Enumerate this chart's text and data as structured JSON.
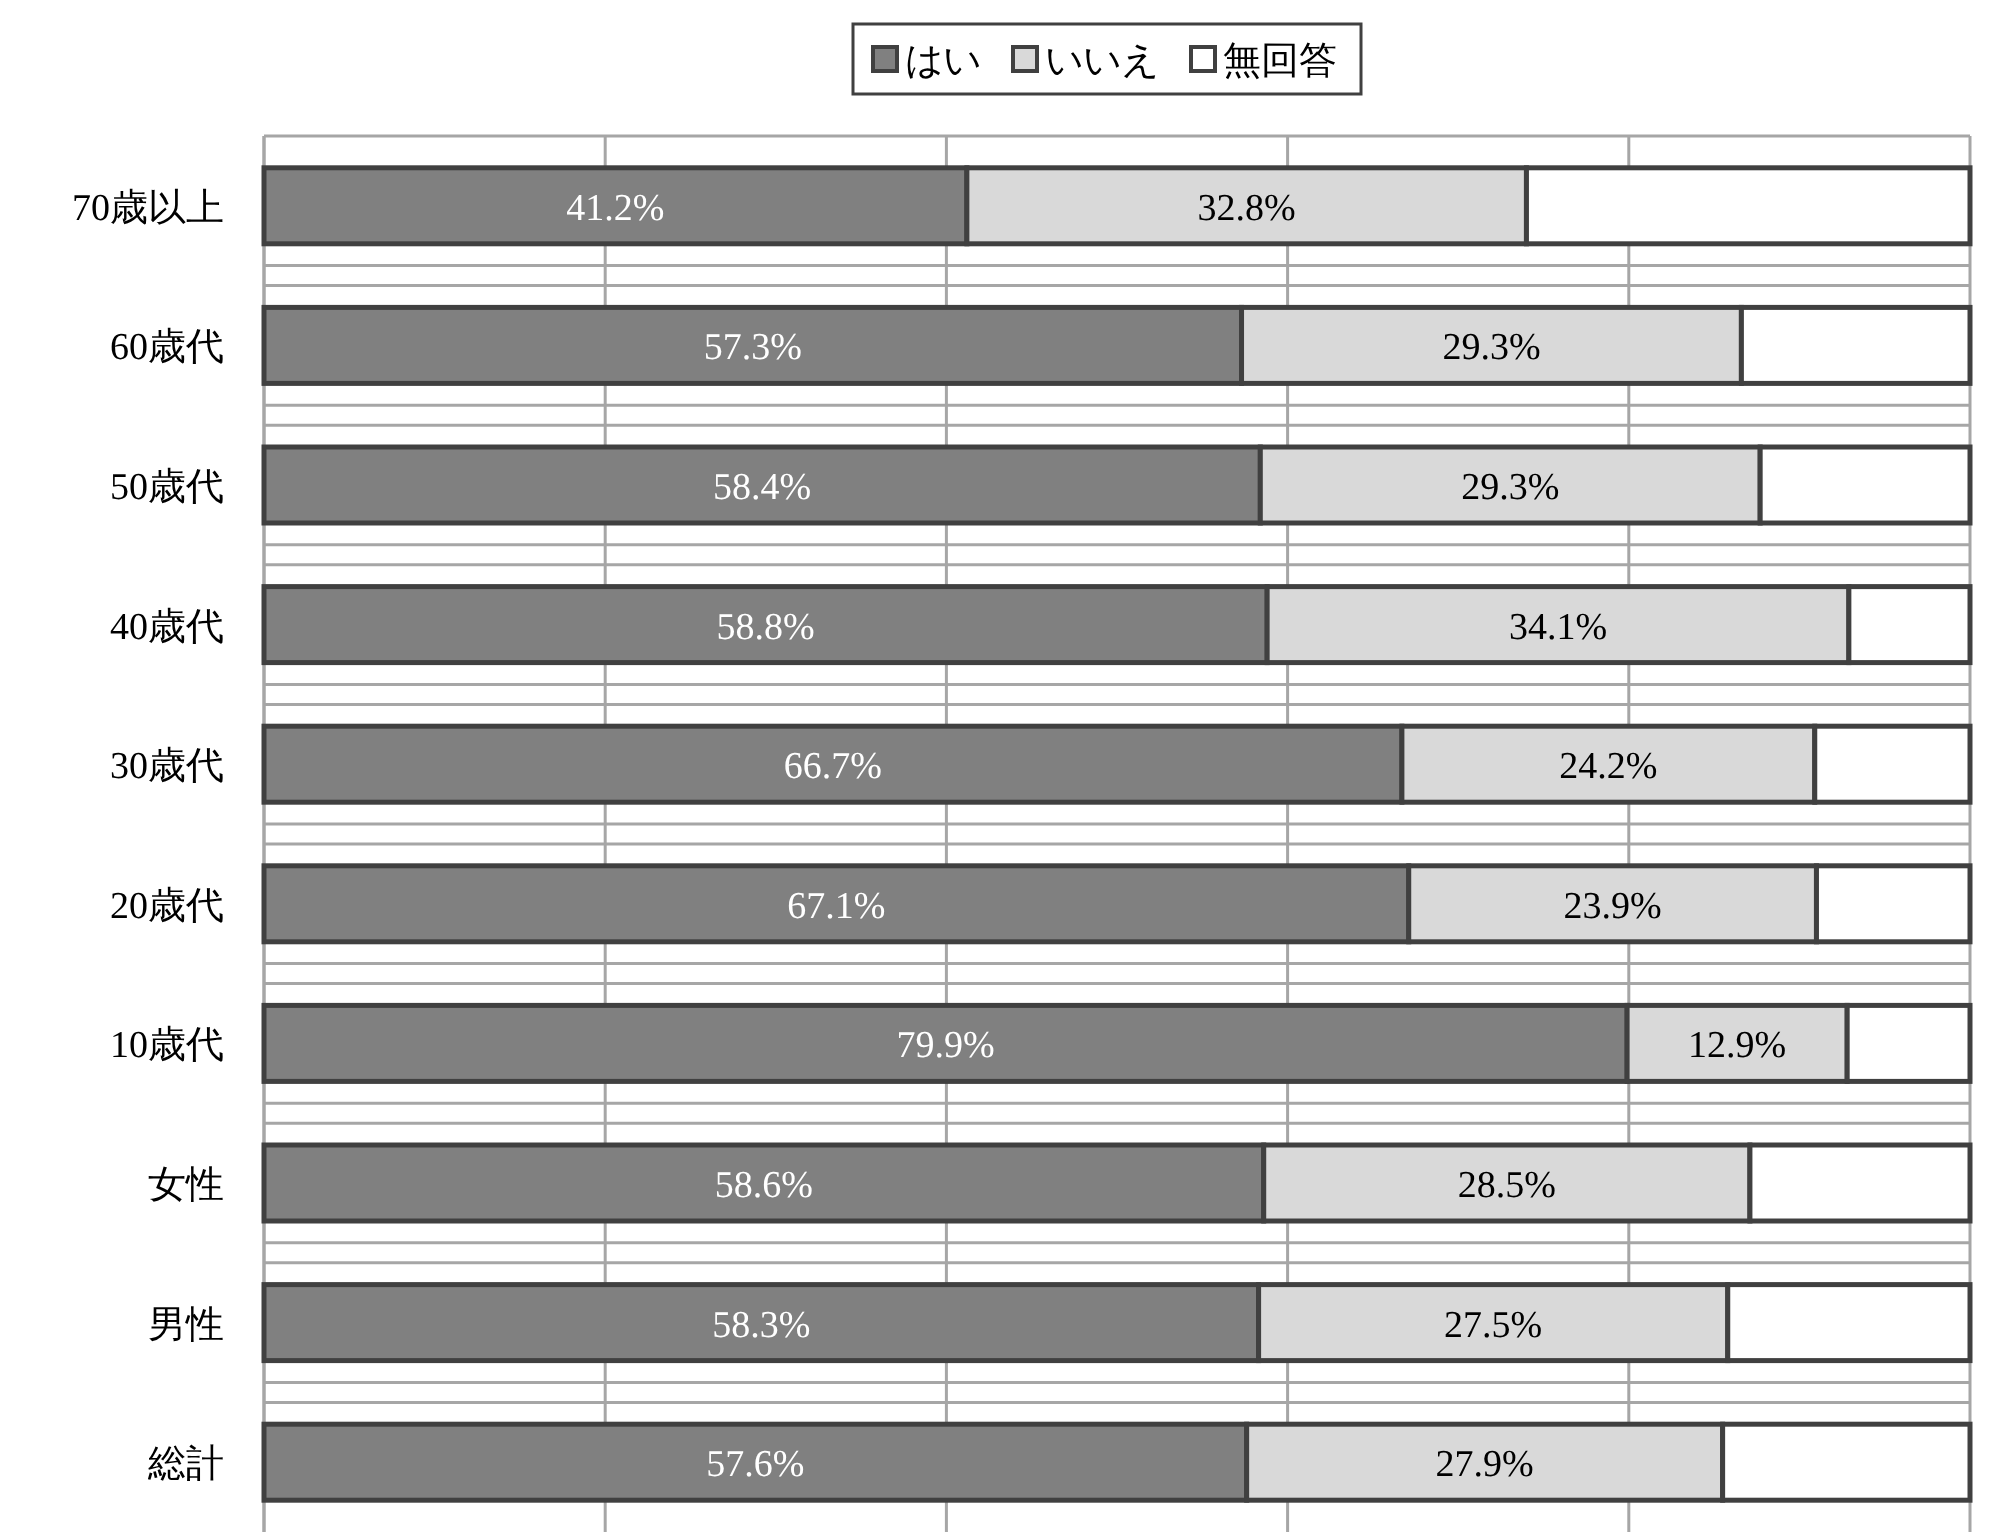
{
  "chart_data": {
    "type": "bar",
    "orientation": "horizontal",
    "stacked": true,
    "categories": [
      "70歳以上",
      "60歳代",
      "50歳代",
      "40歳代",
      "30歳代",
      "20歳代",
      "10歳代",
      "女性",
      "男性",
      "総計"
    ],
    "series": [
      {
        "name": "はい",
        "color": "#808080",
        "values": [
          41.2,
          57.3,
          58.4,
          58.8,
          66.7,
          67.1,
          79.9,
          58.6,
          58.3,
          57.6
        ],
        "value_labels": [
          "41.2%",
          "57.3%",
          "58.4%",
          "58.8%",
          "66.7%",
          "67.1%",
          "79.9%",
          "58.6%",
          "58.3%",
          "57.6%"
        ]
      },
      {
        "name": "いいえ",
        "color": "#d9d9d9",
        "values": [
          32.8,
          29.3,
          29.3,
          34.1,
          24.2,
          23.9,
          12.9,
          28.5,
          27.5,
          27.9
        ],
        "value_labels": [
          "32.8%",
          "29.3%",
          "29.3%",
          "34.1%",
          "24.2%",
          "23.9%",
          "12.9%",
          "28.5%",
          "27.5%",
          "27.9%"
        ]
      },
      {
        "name": "無回答",
        "color": "#ffffff",
        "values": [
          26.0,
          13.4,
          12.3,
          7.1,
          9.1,
          9.0,
          7.2,
          12.9,
          14.2,
          14.5
        ]
      }
    ],
    "xlim": [
      0,
      100
    ],
    "xticks": [
      {
        "value": 0,
        "label": null
      },
      {
        "value": 20,
        "label": null
      },
      {
        "value": 40,
        "label": null
      },
      {
        "value": 60,
        "label": null
      },
      {
        "value": 80,
        "label": null
      },
      {
        "value": 100,
        "label": null
      }
    ],
    "tick_labels": "y",
    "grid": true,
    "legend": "top"
  }
}
